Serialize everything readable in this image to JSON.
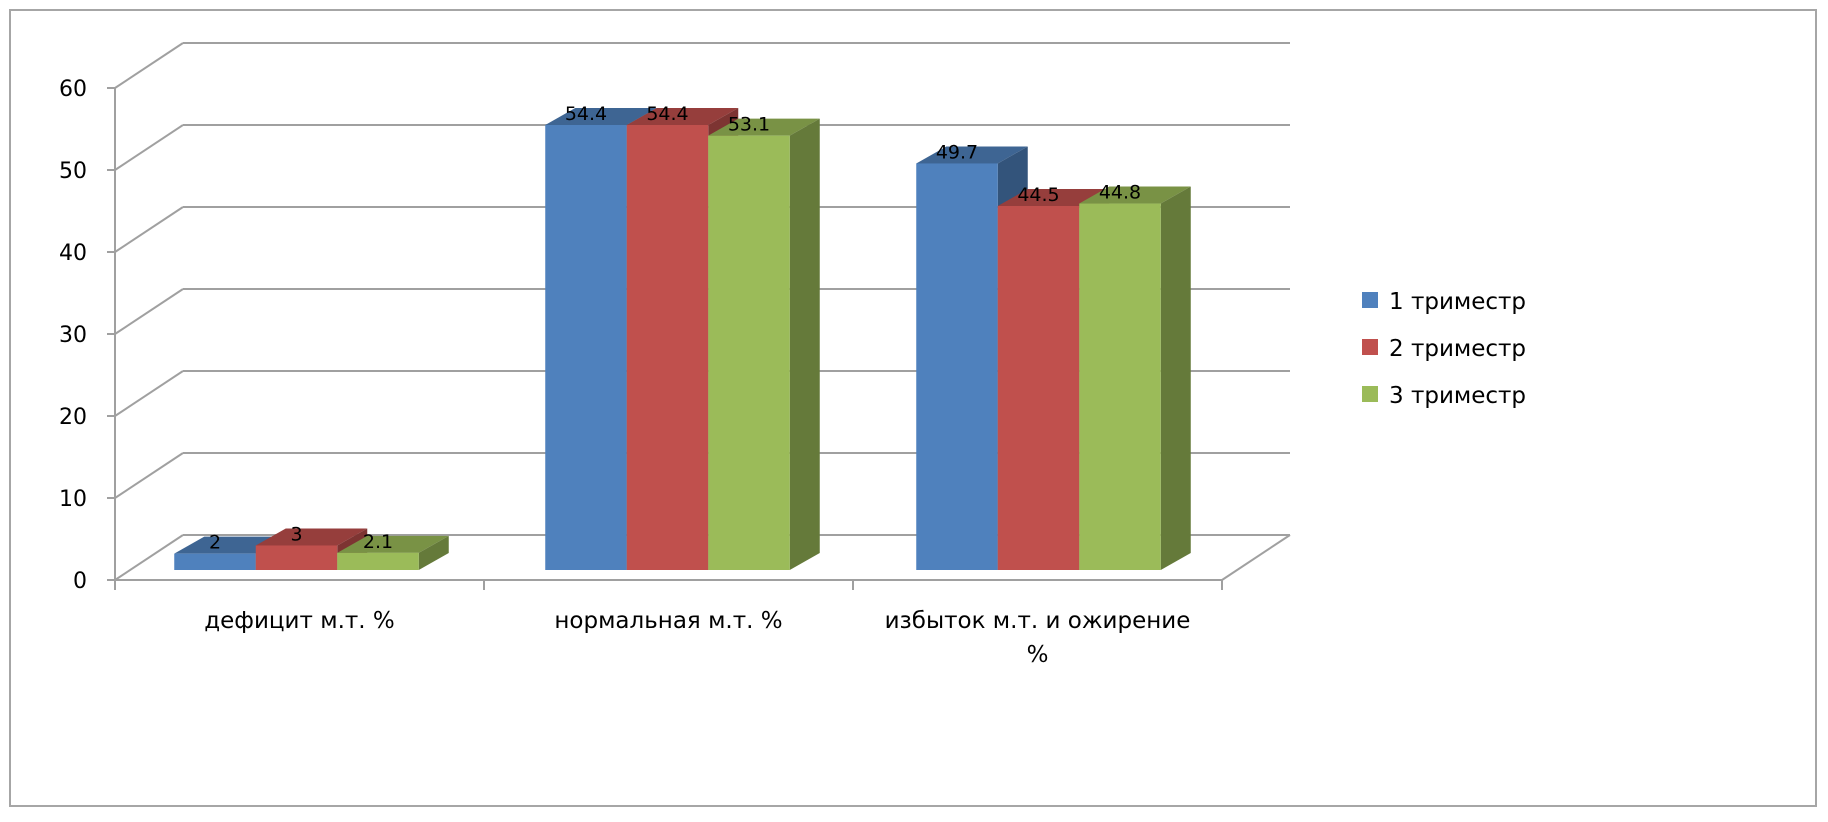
{
  "chart_data": {
    "type": "bar",
    "style": "3d-clustered-column",
    "categories": [
      "дефицит м.т. %",
      "нормальная м.т. %",
      "избыток м.т. и ожирение %"
    ],
    "series": [
      {
        "name": "1 триместр",
        "values": [
          2,
          54.4,
          49.7
        ],
        "labels": [
          "2",
          "54.4",
          "49.7"
        ],
        "color": "#4F81BD"
      },
      {
        "name": "2 триместр",
        "values": [
          3,
          54.4,
          44.5
        ],
        "labels": [
          "3",
          "54.4",
          "44.5"
        ],
        "color": "#C0504D"
      },
      {
        "name": "3 триместр",
        "values": [
          2.1,
          53.1,
          44.8
        ],
        "labels": [
          "2.1",
          "53.1",
          "44.8"
        ],
        "color": "#9BBB59"
      }
    ],
    "title": "",
    "xlabel": "",
    "ylabel": "",
    "ylim": [
      0,
      60
    ],
    "yticks": [
      "0",
      "10",
      "20",
      "30",
      "40",
      "50",
      "60"
    ],
    "grid": true,
    "legend": "right"
  }
}
